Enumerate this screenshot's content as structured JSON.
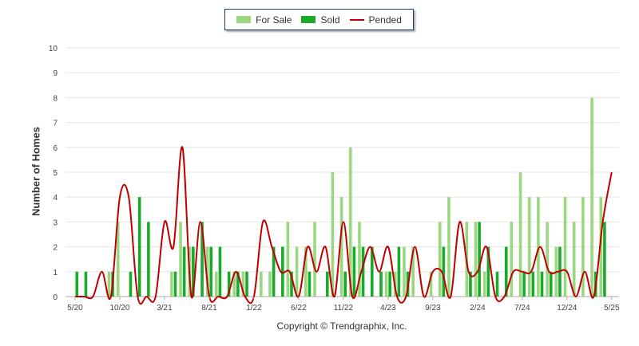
{
  "chart_data": {
    "type": "bar",
    "title": "",
    "ylabel": "Number of Homes",
    "xlabel": "",
    "ylim": [
      0,
      10
    ],
    "yticks": [
      "0",
      "1",
      "2",
      "3",
      "4",
      "5",
      "6",
      "7",
      "8",
      "9",
      "10"
    ],
    "grid": true,
    "legend_position": "top-center",
    "xtick_labels": [
      {
        "label": "5/20",
        "index": 0
      },
      {
        "label": "10/20",
        "index": 5
      },
      {
        "label": "3/21",
        "index": 10
      },
      {
        "label": "8/21",
        "index": 15
      },
      {
        "label": "1/22",
        "index": 20
      },
      {
        "label": "6/22",
        "index": 25
      },
      {
        "label": "11/22",
        "index": 30
      },
      {
        "label": "4/23",
        "index": 35
      },
      {
        "label": "9/23",
        "index": 40
      },
      {
        "label": "2/24",
        "index": 45
      },
      {
        "label": "7/24",
        "index": 50
      },
      {
        "label": "12/24",
        "index": 55
      },
      {
        "label": "5/25",
        "index": 60
      }
    ],
    "months": 61,
    "series": [
      {
        "name": "For Sale",
        "color": "#9ad77f",
        "values": [
          0,
          0,
          0,
          0,
          1,
          3,
          0,
          0,
          0,
          0,
          0,
          1,
          3,
          2,
          0,
          2,
          1,
          0,
          1,
          1,
          0,
          1,
          1,
          0,
          3,
          2,
          2,
          3,
          0,
          5,
          4,
          6,
          3,
          0,
          0,
          1,
          1,
          2,
          2,
          0,
          1,
          3,
          4,
          0,
          3,
          3,
          1,
          0,
          0,
          3,
          5,
          4,
          4,
          3,
          2,
          4,
          3,
          4,
          8,
          4,
          0
        ]
      },
      {
        "name": "Sold",
        "color": "#1aaa2a",
        "values": [
          1,
          1,
          0,
          0,
          1,
          0,
          1,
          4,
          3,
          0,
          0,
          1,
          2,
          2,
          3,
          2,
          2,
          1,
          1,
          1,
          0,
          0,
          2,
          2,
          1,
          0,
          1,
          0,
          1,
          0,
          1,
          2,
          2,
          2,
          1,
          1,
          2,
          1,
          0,
          0,
          0,
          2,
          0,
          0,
          1,
          3,
          2,
          1,
          2,
          0,
          1,
          1,
          1,
          1,
          2,
          0,
          0,
          0,
          1,
          3,
          0
        ]
      },
      {
        "name": "Pended",
        "color": "#c00000",
        "values": [
          0,
          0,
          0,
          1,
          0,
          4,
          4,
          0,
          0,
          0,
          3,
          2,
          6,
          0,
          3,
          0,
          0,
          0,
          1,
          0,
          0,
          3,
          2,
          1,
          1,
          0,
          2,
          1,
          2,
          0,
          3,
          0,
          1,
          2,
          1,
          2,
          0,
          0,
          2,
          0,
          1,
          1,
          0,
          3,
          1,
          1,
          2,
          0,
          0,
          1,
          1,
          1,
          2,
          1,
          1,
          1,
          0,
          1,
          0,
          3,
          5
        ]
      }
    ]
  },
  "legend": {
    "for_sale": "For Sale",
    "sold": "Sold",
    "pended": "Pended"
  },
  "copyright": "Copyright © Trendgraphix, Inc."
}
